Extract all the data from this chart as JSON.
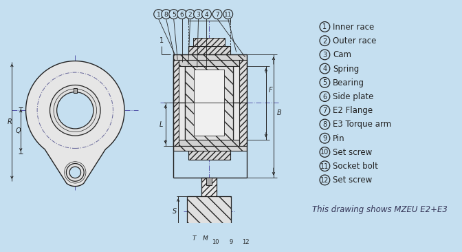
{
  "bg_color": "#c5dff0",
  "line_color": "#444444",
  "dark_line": "#222222",
  "legend_items": [
    {
      "num": "1",
      "text": "Inner race"
    },
    {
      "num": "2",
      "text": "Outer race"
    },
    {
      "num": "3",
      "text": "Cam"
    },
    {
      "num": "4",
      "text": "Spring"
    },
    {
      "num": "5",
      "text": "Bearing"
    },
    {
      "num": "6",
      "text": "Side plate"
    },
    {
      "num": "7",
      "text": "E2 Flange"
    },
    {
      "num": "8",
      "text": "E3 Torque arm"
    },
    {
      "num": "9",
      "text": "Pin"
    },
    {
      "num": "10",
      "text": "Set screw"
    },
    {
      "num": "11",
      "text": "Socket bolt"
    },
    {
      "num": "12",
      "text": "Set screw"
    }
  ],
  "bottom_text": "This drawing shows MZEU E2+E3",
  "part_numbers_top": [
    "1",
    "8",
    "5",
    "6",
    "2",
    "3",
    "4",
    "7",
    "11"
  ],
  "part_numbers_bottom": [
    "10",
    "9",
    "12"
  ]
}
